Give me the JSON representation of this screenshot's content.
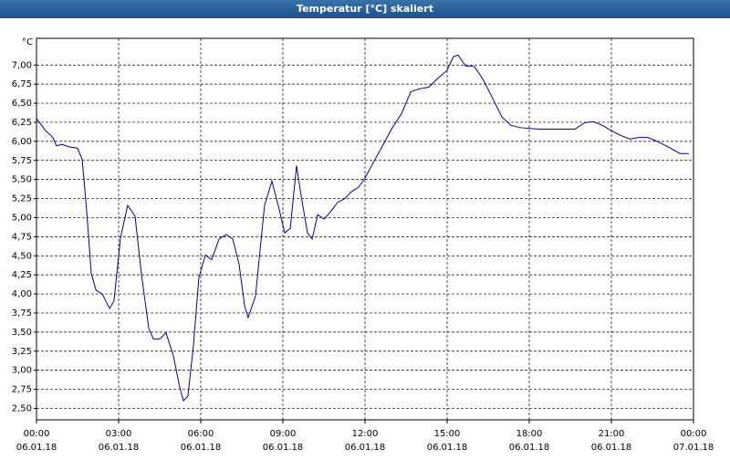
{
  "chart_data": {
    "type": "line",
    "title": "Temperatur [°C] skaliert",
    "y_unit": "°C",
    "xlim": [
      0,
      24
    ],
    "ylim": [
      2.35,
      7.35
    ],
    "grid": true,
    "color": "#0000a0",
    "xticks": [
      {
        "value": 0,
        "label": "00:00",
        "date": "06.01.18"
      },
      {
        "value": 3,
        "label": "03:00",
        "date": "06.01.18"
      },
      {
        "value": 6,
        "label": "06:00",
        "date": "06.01.18"
      },
      {
        "value": 9,
        "label": "09:00",
        "date": "06.01.18"
      },
      {
        "value": 12,
        "label": "12:00",
        "date": "06.01.18"
      },
      {
        "value": 15,
        "label": "15:00",
        "date": "06.01.18"
      },
      {
        "value": 18,
        "label": "18:00",
        "date": "06.01.18"
      },
      {
        "value": 21,
        "label": "21:00",
        "date": "06.01.18"
      },
      {
        "value": 24,
        "label": "00:00",
        "date": "07.01.18"
      }
    ],
    "yticks": [
      {
        "value": 2.5,
        "label": "2,50"
      },
      {
        "value": 2.75,
        "label": "2,75"
      },
      {
        "value": 3,
        "label": "3,00"
      },
      {
        "value": 3.25,
        "label": "3,25"
      },
      {
        "value": 3.5,
        "label": "3,50"
      },
      {
        "value": 3.75,
        "label": "3,75"
      },
      {
        "value": 4,
        "label": "4,00"
      },
      {
        "value": 4.25,
        "label": "4,25"
      },
      {
        "value": 4.5,
        "label": "4,50"
      },
      {
        "value": 4.75,
        "label": "4,75"
      },
      {
        "value": 5,
        "label": "5,00"
      },
      {
        "value": 5.25,
        "label": "5,25"
      },
      {
        "value": 5.5,
        "label": "5,50"
      },
      {
        "value": 5.75,
        "label": "5,75"
      },
      {
        "value": 6,
        "label": "6,00"
      },
      {
        "value": 6.25,
        "label": "6,25"
      },
      {
        "value": 6.5,
        "label": "6,50"
      },
      {
        "value": 6.75,
        "label": "6,75"
      },
      {
        "value": 7,
        "label": "7,00"
      }
    ],
    "x": [
      0,
      0.33,
      0.6,
      0.73,
      0.93,
      1.17,
      1.5,
      1.67,
      1.83,
      2.0,
      2.17,
      2.4,
      2.67,
      2.83,
      3.07,
      3.33,
      3.6,
      3.83,
      4.1,
      4.27,
      4.5,
      4.73,
      5.0,
      5.23,
      5.37,
      5.53,
      5.73,
      5.93,
      6.17,
      6.4,
      6.67,
      6.93,
      7.17,
      7.4,
      7.6,
      7.73,
      8.0,
      8.33,
      8.6,
      8.83,
      9.07,
      9.27,
      9.5,
      9.67,
      9.9,
      10.07,
      10.27,
      10.5,
      10.73,
      11.0,
      11.27,
      11.5,
      11.77,
      12.0,
      12.33,
      12.67,
      13.0,
      13.33,
      13.67,
      14.0,
      14.33,
      14.67,
      15.0,
      15.23,
      15.4,
      15.67,
      16.0,
      16.33,
      16.67,
      17.0,
      17.33,
      17.67,
      18.33,
      19.33,
      19.67,
      20.0,
      20.33,
      20.67,
      21.0,
      21.33,
      21.67,
      22.0,
      22.33,
      22.67,
      23.17,
      23.5,
      23.83
    ],
    "values": [
      6.3,
      6.14,
      6.05,
      5.94,
      5.96,
      5.93,
      5.91,
      5.76,
      5.1,
      4.27,
      4.05,
      4.0,
      3.81,
      3.91,
      4.74,
      5.16,
      5.02,
      4.27,
      3.55,
      3.41,
      3.41,
      3.49,
      3.19,
      2.78,
      2.6,
      2.66,
      3.31,
      4.21,
      4.51,
      4.45,
      4.72,
      4.78,
      4.72,
      4.39,
      3.85,
      3.69,
      3.97,
      5.16,
      5.48,
      5.16,
      4.8,
      4.86,
      5.68,
      5.28,
      4.8,
      4.72,
      5.04,
      4.98,
      5.07,
      5.2,
      5.25,
      5.34,
      5.4,
      5.52,
      5.74,
      5.96,
      6.18,
      6.36,
      6.65,
      6.69,
      6.71,
      6.83,
      6.93,
      7.11,
      7.13,
      6.99,
      6.98,
      6.8,
      6.56,
      6.32,
      6.21,
      6.18,
      6.16,
      6.16,
      6.16,
      6.24,
      6.26,
      6.21,
      6.14,
      6.08,
      6.03,
      6.05,
      6.05,
      6.0,
      5.91,
      5.84,
      5.84
    ]
  }
}
